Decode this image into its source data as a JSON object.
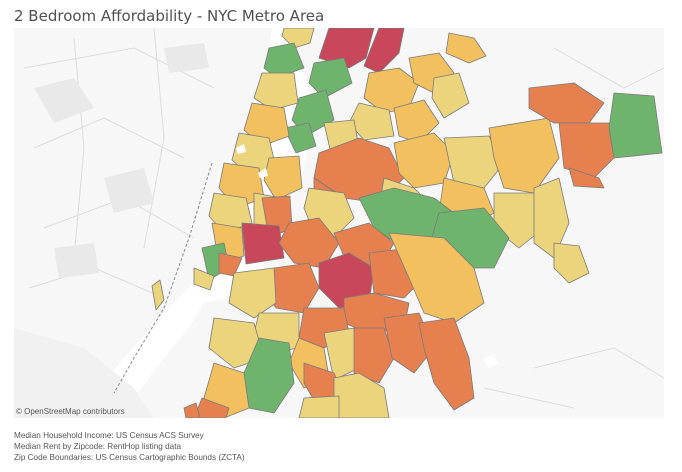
{
  "title": "2 Bedroom Affordability - NYC Metro Area",
  "attribution": "© OpenStreetMap contributors",
  "sources": [
    "Median Household Income: US Census ACS Survey",
    "Median Rent by Zipcode: RentHop listing data",
    "Zip Code Boundaries: US Census Cartographic Bounds (ZCTA)"
  ],
  "colors": {
    "background": "#ececec",
    "land": "#f8f8f8",
    "water": "#ffffff",
    "least_affordable": "#c8475a",
    "less_affordable": "#e7804f",
    "moderate": "#f2c05f",
    "more_affordable": "#ecd47c",
    "most_affordable": "#6fb46c",
    "boundary": "#7a7a7a"
  },
  "icons": {
    "map": "choropleth-map",
    "attribution": "copyright-symbol"
  }
}
